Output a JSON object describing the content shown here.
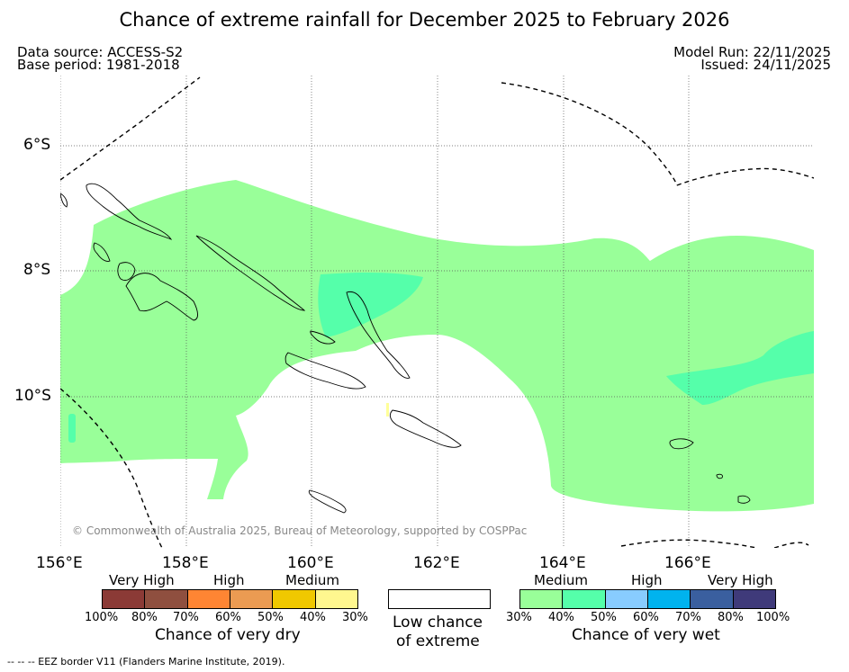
{
  "title": "Chance of extreme rainfall for December 2025 to February 2026",
  "meta": {
    "data_source": "Data source: ACCESS-S2",
    "base_period": "Base period: 1981-2018",
    "model_run": "Model Run: 22/11/2025",
    "issued": "Issued: 24/11/2025"
  },
  "map": {
    "lat_labels": [
      "6°S",
      "8°S",
      "10°S"
    ],
    "lon_labels": [
      "156°E",
      "158°E",
      "160°E",
      "162°E",
      "164°E",
      "166°E"
    ],
    "credit": "© Commonwealth of Australia 2025, Bureau of Meteorology, supported by COSPPac",
    "colors": {
      "wet_medium": "#99ff99",
      "wet_medium_high": "#55ffaa",
      "dry_medium_light": "#ffff99"
    }
  },
  "legend": {
    "dry": {
      "groups": [
        "Very High",
        "High",
        "Medium"
      ],
      "ticks": [
        "100%",
        "80%",
        "70%",
        "60%",
        "50%",
        "40%",
        "30%"
      ],
      "title": "Chance of very dry",
      "colors": [
        "#8b3a36",
        "#8f4f3f",
        "#ff8533",
        "#eb9b52",
        "#f0c800",
        "#fff78f"
      ]
    },
    "neutral": {
      "line1": "Low chance",
      "line2": "of extreme",
      "color": "#ffffff"
    },
    "wet": {
      "groups": [
        "Medium",
        "High",
        "Very High"
      ],
      "ticks": [
        "30%",
        "40%",
        "50%",
        "60%",
        "70%",
        "80%",
        "100%"
      ],
      "title": "Chance of very wet",
      "colors": [
        "#99ff99",
        "#55ffaa",
        "#88ccff",
        "#00b3ee",
        "#3a5f9f",
        "#3f3a7a"
      ]
    }
  },
  "footer": "-- -- -- EEZ border V11 (Flanders Marine Institute, 2019)."
}
